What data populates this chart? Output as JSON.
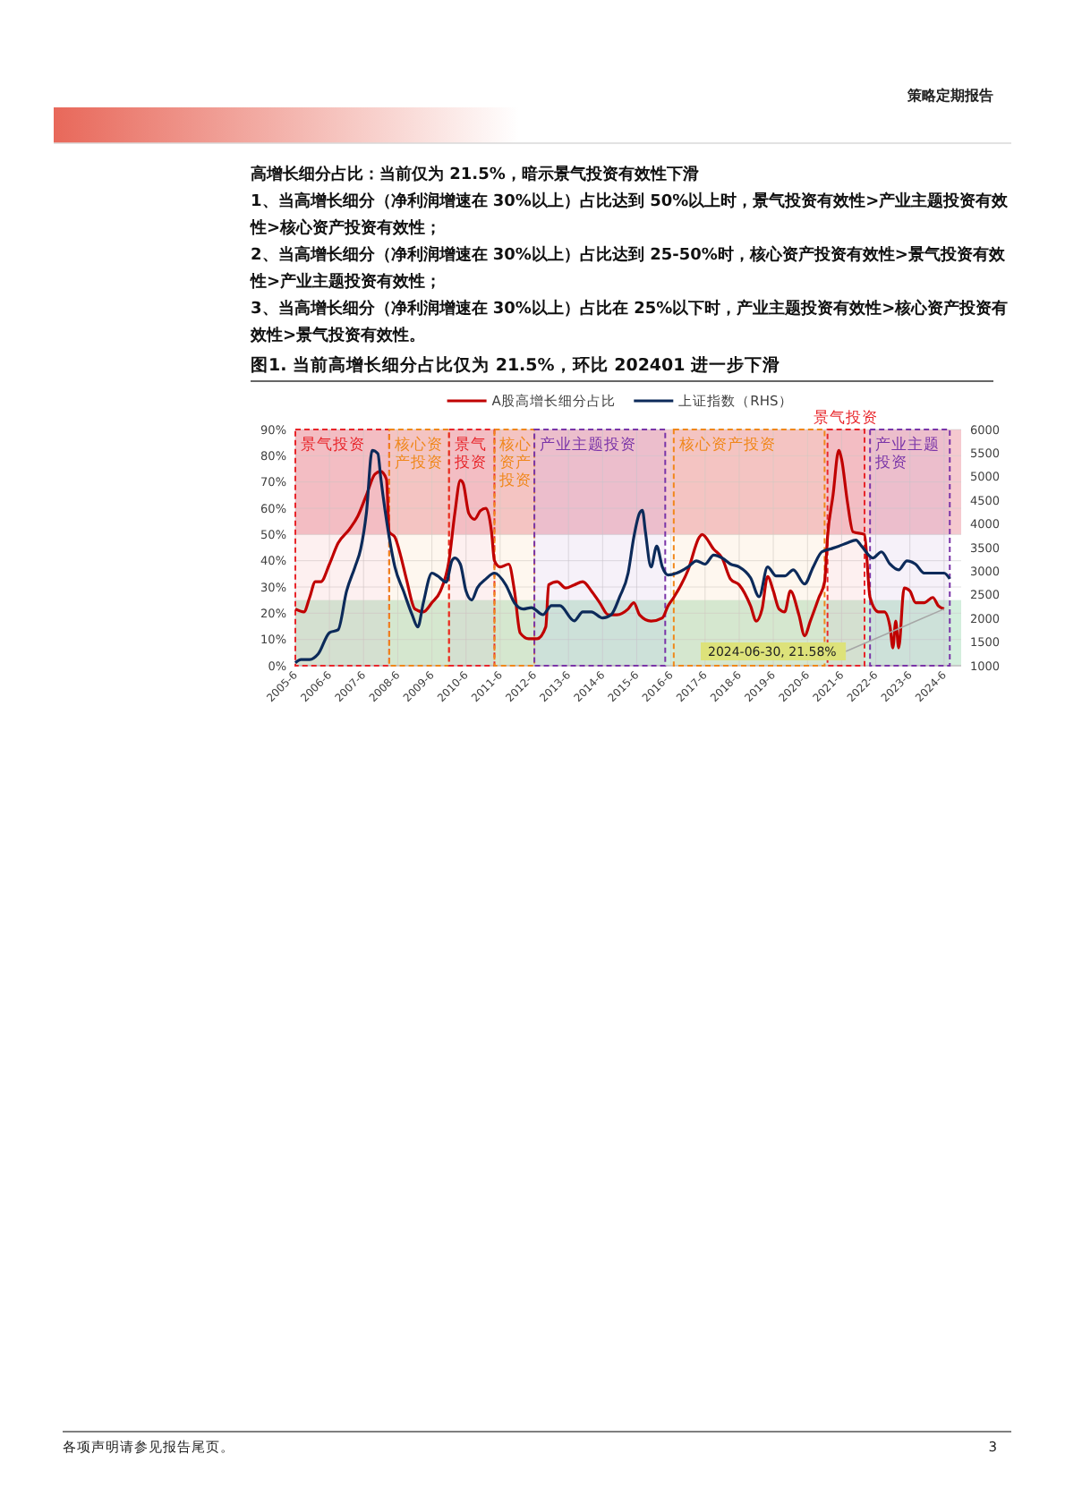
{
  "chart_data": {
    "type": "line",
    "title": "图1. 当前高增长细分占比仅为 21.5%，环比 202401 进一步下滑",
    "annotations": [
      "策略定期报告",
      "高增长细分占比：当前仅为 21.5%，暗示景气投资有效性下滑",
      "1、当高增长细分（净利润增速在 30%以上）占比达到 50%以上时，景气投资有效性>产业主题投资有效性>核心资产投资有效性；",
      "2、当高增长细分（净利润增速在 30%以上）占比达到 25-50%时，核心资产投资有效性>景气投资有效性>产业主题投资有效性；",
      "3、当高增长细分（净利润增速在 30%以上）占比在 25%以下时，产业主题投资有效性>核心资产投资有效性>景气投资有效性。",
      "各项声明请参见报告尾页。",
      "3",
      {
        "text": "2024-06-30, 21.58%",
        "x": "2024-06",
        "y": 21.6
      }
    ],
    "xlim": [
      "2005-06",
      "2024-12"
    ],
    "xticks": [
      {
        "value": "2005-06",
        "label": "2005-6"
      },
      {
        "value": "2006-06",
        "label": "2006-6"
      },
      {
        "value": "2007-06",
        "label": "2007-6"
      },
      {
        "value": "2008-06",
        "label": "2008-6"
      },
      {
        "value": "2009-06",
        "label": "2009-6"
      },
      {
        "value": "2010-06",
        "label": "2010-6"
      },
      {
        "value": "2011-06",
        "label": "2011-6"
      },
      {
        "value": "2012-06",
        "label": "2012-6"
      },
      {
        "value": "2013-06",
        "label": "2013-6"
      },
      {
        "value": "2014-06",
        "label": "2014-6"
      },
      {
        "value": "2015-06",
        "label": "2015-6"
      },
      {
        "value": "2016-06",
        "label": "2016-6"
      },
      {
        "value": "2017-06",
        "label": "2017-6"
      },
      {
        "value": "2018-06",
        "label": "2018-6"
      },
      {
        "value": "2019-06",
        "label": "2019-6"
      },
      {
        "value": "2020-06",
        "label": "2020-6"
      },
      {
        "value": "2021-06",
        "label": "2021-6"
      },
      {
        "value": "2022-06",
        "label": "2022-6"
      },
      {
        "value": "2023-06",
        "label": "2023-6"
      },
      {
        "value": "2024-06",
        "label": "2024-6"
      }
    ],
    "ylim": [
      0,
      90
    ],
    "yticks": [
      {
        "value": 0,
        "label": "0%"
      },
      {
        "value": 10,
        "label": "10%"
      },
      {
        "value": 20,
        "label": "20%"
      },
      {
        "value": 30,
        "label": "30%"
      },
      {
        "value": 40,
        "label": "40%"
      },
      {
        "value": 50,
        "label": "50%"
      },
      {
        "value": 60,
        "label": "60%"
      },
      {
        "value": 70,
        "label": "70%"
      },
      {
        "value": 80,
        "label": "80%"
      },
      {
        "value": 90,
        "label": "90%"
      }
    ],
    "y2lim": [
      1000,
      6000
    ],
    "y2ticks": [
      1000,
      1500,
      2000,
      2500,
      3000,
      3500,
      4000,
      4500,
      5000,
      5500,
      6000
    ],
    "grid": true,
    "legend": "top",
    "bands": [
      {
        "axis": "y",
        "from": 50,
        "to": 90,
        "color": "#f5c9cf"
      },
      {
        "axis": "y",
        "from": 0,
        "to": 25,
        "color": "#d3eedd"
      },
      {
        "axis": "x",
        "from": "2005-06",
        "to": "2008-03",
        "label": "景气投资",
        "color": "#e8262b"
      },
      {
        "axis": "x",
        "from": "2008-03",
        "to": "2009-12",
        "label": "核心资产投资",
        "color": "#f0871a"
      },
      {
        "axis": "x",
        "from": "2009-12",
        "to": "2011-04",
        "label": "景气投资",
        "color": "#e8262b"
      },
      {
        "axis": "x",
        "from": "2011-04",
        "to": "2012-06",
        "label": "核心资产投资",
        "color": "#f0871a"
      },
      {
        "axis": "x",
        "from": "2012-06",
        "to": "2016-04",
        "label": "产业主题投资",
        "color": "#7a35a8"
      },
      {
        "axis": "x",
        "from": "2016-07",
        "to": "2020-12",
        "label": "核心资产投资",
        "color": "#f0871a"
      },
      {
        "axis": "x",
        "from": "2021-01",
        "to": "2022-02",
        "label": "景气投资",
        "color": "#e8262b"
      },
      {
        "axis": "x",
        "from": "2022-04",
        "to": "2024-08",
        "label": "产业主题投资",
        "color": "#7a35a8"
      }
    ],
    "series": [
      {
        "name": "A股高增长细分占比",
        "color": "#c00000",
        "x": [
          "2005-06",
          "2005-09",
          "2005-11",
          "2006-01",
          "2006-03",
          "2006-06",
          "2006-09",
          "2007-01",
          "2007-04",
          "2007-07",
          "2007-10",
          "2007-12",
          "2008-02",
          "2008-03",
          "2008-05",
          "2008-07",
          "2008-09",
          "2008-12",
          "2009-03",
          "2009-06",
          "2009-09",
          "2009-12",
          "2010-02",
          "2010-04",
          "2010-05",
          "2010-07",
          "2010-09",
          "2010-11",
          "2011-01",
          "2011-03",
          "2011-04",
          "2011-06",
          "2011-09",
          "2011-11",
          "2012-01",
          "2012-04",
          "2012-07",
          "2012-10",
          "2012-11",
          "2013-02",
          "2013-05",
          "2013-08",
          "2013-11",
          "2014-02",
          "2014-05",
          "2014-08",
          "2014-11",
          "2015-03",
          "2015-05",
          "2015-07",
          "2015-11",
          "2016-03",
          "2016-05",
          "2016-07",
          "2016-12",
          "2017-04",
          "2017-05",
          "2017-09",
          "2017-12",
          "2018-03",
          "2018-06",
          "2018-10",
          "2018-12",
          "2019-02",
          "2019-04",
          "2019-06",
          "2019-08",
          "2019-10",
          "2019-12",
          "2020-03",
          "2020-05",
          "2020-07",
          "2020-10",
          "2020-12",
          "2021-01",
          "2021-03",
          "2021-05",
          "2021-06",
          "2021-08",
          "2021-10",
          "2022-02",
          "2022-04",
          "2022-07",
          "2022-09",
          "2022-11",
          "2022-12",
          "2023-01",
          "2023-02",
          "2023-04",
          "2023-06",
          "2023-08",
          "2023-11",
          "2024-02",
          "2024-04",
          "2024-06"
        ],
        "values": [
          21.6,
          20.5,
          26,
          32,
          32,
          38.7,
          46.7,
          52,
          57,
          65,
          73,
          74,
          71,
          51,
          49,
          42,
          33,
          21.6,
          20.5,
          24,
          28.5,
          40,
          58,
          70.6,
          69.5,
          58,
          55.8,
          59,
          60,
          51,
          40,
          37.6,
          38.7,
          28.5,
          12.5,
          10.3,
          10.3,
          14.8,
          30.8,
          32,
          29.6,
          30.8,
          32,
          28.5,
          24,
          19.4,
          19.4,
          21.6,
          24,
          19.4,
          17,
          18.2,
          22.8,
          26,
          36.4,
          49,
          50,
          44.4,
          41,
          33,
          30.8,
          22.8,
          17,
          21.6,
          34,
          28.5,
          21.6,
          20.5,
          28.5,
          19.4,
          11.4,
          17,
          26,
          32,
          49,
          65,
          82,
          78.6,
          62.6,
          51,
          50,
          26,
          20.5,
          20.5,
          14.8,
          6.8,
          17,
          6.8,
          29.6,
          28.5,
          24,
          24,
          26,
          22.8,
          21.6
        ]
      },
      {
        "name": "上证指数（RHS）",
        "color": "#0c2a5a",
        "axis": "y2",
        "x": [
          "2005-06",
          "2005-08",
          "2005-11",
          "2006-02",
          "2006-06",
          "2006-09",
          "2006-12",
          "2007-03",
          "2007-05",
          "2007-07",
          "2007-09",
          "2007-11",
          "2007-12",
          "2008-03",
          "2008-05",
          "2008-08",
          "2008-11",
          "2009-01",
          "2009-03",
          "2009-06",
          "2009-08",
          "2009-11",
          "2010-01",
          "2010-02",
          "2010-04",
          "2010-06",
          "2010-08",
          "2010-10",
          "2011-01",
          "2011-04",
          "2011-08",
          "2011-11",
          "2012-02",
          "2012-05",
          "2012-09",
          "2012-12",
          "2013-03",
          "2013-08",
          "2013-11",
          "2014-02",
          "2014-06",
          "2014-09",
          "2014-12",
          "2015-03",
          "2015-05",
          "2015-07",
          "2015-08",
          "2015-09",
          "2015-11",
          "2016-01",
          "2016-03",
          "2016-05",
          "2016-08",
          "2016-12",
          "2017-03",
          "2017-06",
          "2017-09",
          "2017-12",
          "2018-03",
          "2018-06",
          "2018-10",
          "2019-01",
          "2019-04",
          "2019-07",
          "2019-10",
          "2020-01",
          "2020-05",
          "2020-08",
          "2020-11",
          "2021-02",
          "2021-05",
          "2021-08",
          "2021-11",
          "2022-01",
          "2022-05",
          "2022-08",
          "2022-11",
          "2023-02",
          "2023-05",
          "2023-08",
          "2023-11",
          "2024-03",
          "2024-06",
          "2024-08"
        ],
        "values": [
          1060,
          1130,
          1130,
          1250,
          1700,
          1760,
          2580,
          3090,
          3470,
          4230,
          5560,
          5490,
          4990,
          3720,
          3090,
          2580,
          2080,
          1820,
          2330,
          2960,
          2900,
          2770,
          3220,
          3280,
          3150,
          2580,
          2390,
          2650,
          2840,
          2960,
          2710,
          2330,
          2200,
          2230,
          2080,
          2270,
          2270,
          1950,
          2140,
          2140,
          2010,
          2080,
          2460,
          2960,
          3720,
          4230,
          4290,
          3850,
          3090,
          3530,
          3090,
          2920,
          2960,
          3090,
          3220,
          3150,
          3340,
          3280,
          3150,
          3090,
          2860,
          2460,
          3090,
          2900,
          2900,
          3030,
          2730,
          3090,
          3410,
          3470,
          3530,
          3600,
          3660,
          3530,
          3280,
          3410,
          3150,
          3030,
          3220,
          3150,
          2960,
          2960,
          2960,
          2840
        ]
      }
    ]
  }
}
